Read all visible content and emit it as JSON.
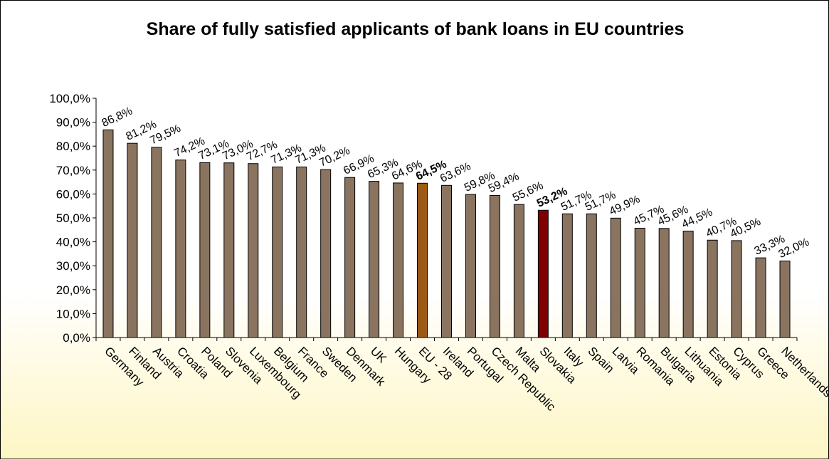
{
  "chart_data": {
    "type": "bar",
    "title": "Share of fully satisfied applicants of bank loans in EU countries",
    "xlabel": "",
    "ylabel": "",
    "ylim": [
      0,
      100
    ],
    "yticks": [
      0,
      10,
      20,
      30,
      40,
      50,
      60,
      70,
      80,
      90,
      100
    ],
    "ytick_labels": [
      "0,0%",
      "10,0%",
      "20,0%",
      "30,0%",
      "40,0%",
      "50,0%",
      "60,0%",
      "70,0%",
      "80,0%",
      "90,0%",
      "100,0%"
    ],
    "grid": false,
    "legend": "none",
    "categories": [
      "Germany",
      "Finland",
      "Austria",
      "Croatia",
      "Poland",
      "Slovenia",
      "Luxembourg",
      "Belgium",
      "France",
      "Sweden",
      "Denmark",
      "UK",
      "Hungary",
      "EU - 28",
      "Ireland",
      "Portugal",
      "Czech Republic",
      "Malta",
      "Slovakia",
      "Italy",
      "Spain",
      "Latvia",
      "Romania",
      "Bulgaria",
      "Lithuania",
      "Estonia",
      "Cyprus",
      "Greece",
      "Netherlands"
    ],
    "values": [
      86.8,
      81.2,
      79.5,
      74.2,
      73.1,
      73.0,
      72.7,
      71.3,
      71.3,
      70.2,
      66.9,
      65.3,
      64.6,
      64.5,
      63.6,
      59.8,
      59.4,
      55.6,
      53.2,
      51.7,
      51.7,
      49.9,
      45.7,
      45.6,
      44.5,
      40.7,
      40.5,
      33.3,
      32.0
    ],
    "data_labels": [
      "86,8%",
      "81,2%",
      "79,5%",
      "74,2%",
      "73,1%",
      "73,0%",
      "72,7%",
      "71,3%",
      "71,3%",
      "70,2%",
      "66,9%",
      "65,3%",
      "64,6%",
      "64,5%",
      "63,6%",
      "59,8%",
      "59,4%",
      "55,6%",
      "53,2%",
      "51,7%",
      "51,7%",
      "49,9%",
      "45,7%",
      "45,6%",
      "44,5%",
      "40,7%",
      "40,5%",
      "33,3%",
      "32,0%"
    ],
    "highlighted": [
      "EU - 28",
      "Slovakia"
    ],
    "colors": {
      "default_bar": "#8a7460",
      "eu_bar": "#9c5a14",
      "slovakia_bar": "#800000",
      "bar_outline": "#000000"
    }
  }
}
